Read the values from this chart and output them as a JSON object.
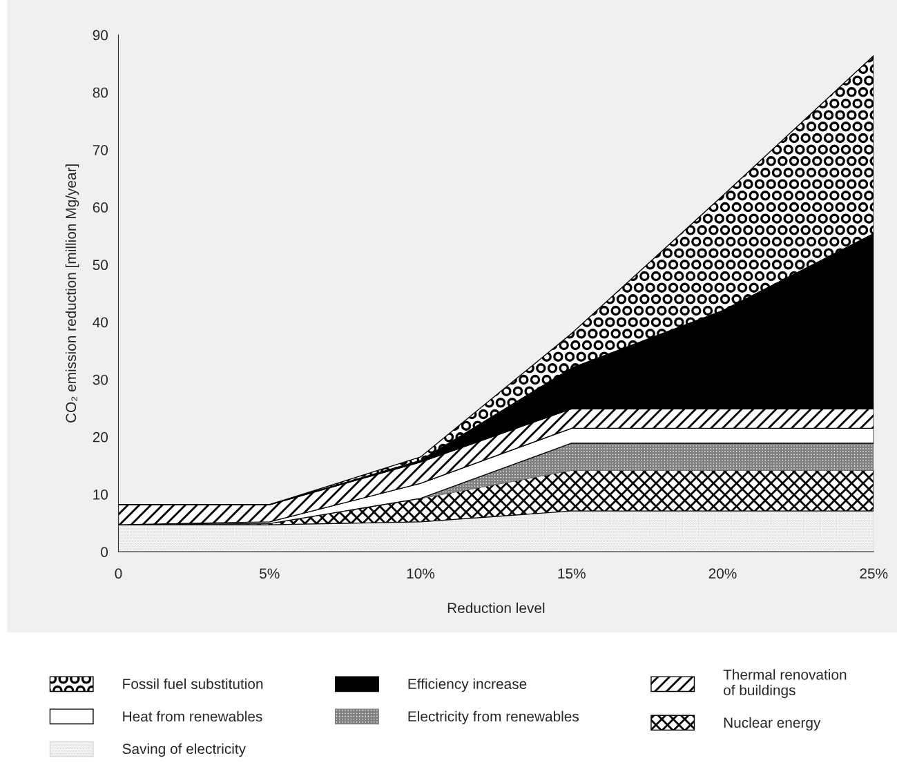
{
  "chart_data": {
    "type": "area",
    "stacked": true,
    "xlabel": "Reduction level",
    "ylabel": "CO₂ emission reduction [million Mg/year]",
    "x": [
      0,
      5,
      10,
      15,
      20,
      25
    ],
    "xlim": [
      0,
      25
    ],
    "xticks": [
      0,
      {
        "value": 5,
        "label": "5%"
      },
      {
        "value": 10,
        "label": "10%"
      },
      {
        "value": 15,
        "label": "15%"
      },
      {
        "value": 20,
        "label": "20%"
      },
      {
        "value": 25,
        "label": "25%"
      }
    ],
    "ylim": [
      0,
      90
    ],
    "yticks": [
      0,
      10,
      20,
      30,
      40,
      50,
      60,
      70,
      80,
      90
    ],
    "grid": false,
    "legend": "bottom",
    "series": [
      {
        "name": "Saving of electricity",
        "color": "#d9d9d9",
        "values": [
          4.7,
          4.7,
          5.2,
          7.1,
          7.1,
          7.1
        ]
      },
      {
        "name": "Nuclear energy",
        "color": "#000000",
        "values": [
          0,
          0.2,
          4.1,
          7.1,
          7.1,
          7.1
        ]
      },
      {
        "name": "Electricity from renewables",
        "color": "#808080",
        "values": [
          0,
          0,
          0,
          4.7,
          4.7,
          4.7
        ]
      },
      {
        "name": "Heat from renewables",
        "color": "#ffffff",
        "values": [
          0,
          0.3,
          2.6,
          2.6,
          2.6,
          2.6
        ]
      },
      {
        "name": "Thermal renovation\nof buildings",
        "color": "#000000",
        "values": [
          3.5,
          3.0,
          3.7,
          3.4,
          3.4,
          3.4
        ]
      },
      {
        "name": "Efficiency increase",
        "color": "#000000",
        "values": [
          0,
          0,
          0.3,
          7.1,
          17.1,
          30.5
        ]
      },
      {
        "name": "Fossil fuel substitution",
        "color": "#000000",
        "values": [
          0,
          0,
          0.6,
          6,
          20,
          31
        ]
      }
    ]
  }
}
